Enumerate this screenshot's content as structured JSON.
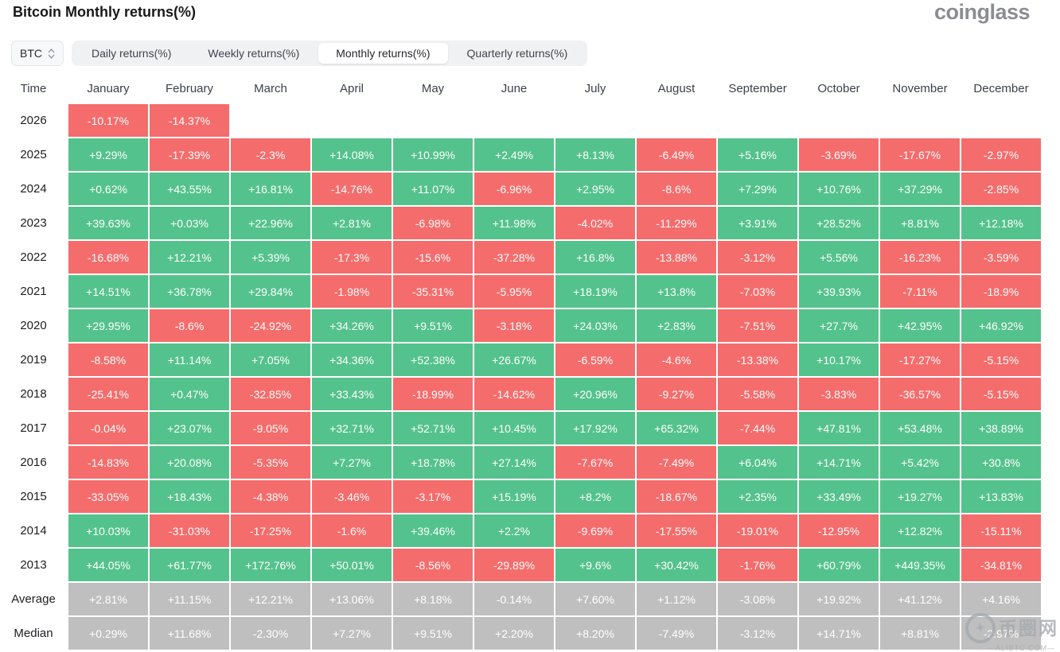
{
  "page": {
    "title": "Bitcoin Monthly returns(%)",
    "logo": "coinglass"
  },
  "controls": {
    "symbol_select": {
      "value": "BTC"
    },
    "tabs": [
      {
        "label": "Daily returns(%)",
        "active": false
      },
      {
        "label": "Weekly returns(%)",
        "active": false
      },
      {
        "label": "Monthly returns(%)",
        "active": true
      },
      {
        "label": "Quarterly returns(%)",
        "active": false
      }
    ]
  },
  "table": {
    "columns": [
      "Time",
      "January",
      "February",
      "March",
      "April",
      "May",
      "June",
      "July",
      "August",
      "September",
      "October",
      "November",
      "December"
    ],
    "rows": [
      {
        "label": "2026",
        "type": "year",
        "cells": [
          "-10.17%",
          "-14.37%",
          "",
          "",
          "",
          "",
          "",
          "",
          "",
          "",
          "",
          ""
        ]
      },
      {
        "label": "2025",
        "type": "year",
        "cells": [
          "+9.29%",
          "-17.39%",
          "-2.3%",
          "+14.08%",
          "+10.99%",
          "+2.49%",
          "+8.13%",
          "-6.49%",
          "+5.16%",
          "-3.69%",
          "-17.67%",
          "-2.97%"
        ]
      },
      {
        "label": "2024",
        "type": "year",
        "cells": [
          "+0.62%",
          "+43.55%",
          "+16.81%",
          "-14.76%",
          "+11.07%",
          "-6.96%",
          "+2.95%",
          "-8.6%",
          "+7.29%",
          "+10.76%",
          "+37.29%",
          "-2.85%"
        ]
      },
      {
        "label": "2023",
        "type": "year",
        "cells": [
          "+39.63%",
          "+0.03%",
          "+22.96%",
          "+2.81%",
          "-6.98%",
          "+11.98%",
          "-4.02%",
          "-11.29%",
          "+3.91%",
          "+28.52%",
          "+8.81%",
          "+12.18%"
        ]
      },
      {
        "label": "2022",
        "type": "year",
        "cells": [
          "-16.68%",
          "+12.21%",
          "+5.39%",
          "-17.3%",
          "-15.6%",
          "-37.28%",
          "+16.8%",
          "-13.88%",
          "-3.12%",
          "+5.56%",
          "-16.23%",
          "-3.59%"
        ]
      },
      {
        "label": "2021",
        "type": "year",
        "cells": [
          "+14.51%",
          "+36.78%",
          "+29.84%",
          "-1.98%",
          "-35.31%",
          "-5.95%",
          "+18.19%",
          "+13.8%",
          "-7.03%",
          "+39.93%",
          "-7.11%",
          "-18.9%"
        ]
      },
      {
        "label": "2020",
        "type": "year",
        "cells": [
          "+29.95%",
          "-8.6%",
          "-24.92%",
          "+34.26%",
          "+9.51%",
          "-3.18%",
          "+24.03%",
          "+2.83%",
          "-7.51%",
          "+27.7%",
          "+42.95%",
          "+46.92%"
        ]
      },
      {
        "label": "2019",
        "type": "year",
        "cells": [
          "-8.58%",
          "+11.14%",
          "+7.05%",
          "+34.36%",
          "+52.38%",
          "+26.67%",
          "-6.59%",
          "-4.6%",
          "-13.38%",
          "+10.17%",
          "-17.27%",
          "-5.15%"
        ]
      },
      {
        "label": "2018",
        "type": "year",
        "cells": [
          "-25.41%",
          "+0.47%",
          "-32.85%",
          "+33.43%",
          "-18.99%",
          "-14.62%",
          "+20.96%",
          "-9.27%",
          "-5.58%",
          "-3.83%",
          "-36.57%",
          "-5.15%"
        ]
      },
      {
        "label": "2017",
        "type": "year",
        "cells": [
          "-0.04%",
          "+23.07%",
          "-9.05%",
          "+32.71%",
          "+52.71%",
          "+10.45%",
          "+17.92%",
          "+65.32%",
          "-7.44%",
          "+47.81%",
          "+53.48%",
          "+38.89%"
        ]
      },
      {
        "label": "2016",
        "type": "year",
        "cells": [
          "-14.83%",
          "+20.08%",
          "-5.35%",
          "+7.27%",
          "+18.78%",
          "+27.14%",
          "-7.67%",
          "-7.49%",
          "+6.04%",
          "+14.71%",
          "+5.42%",
          "+30.8%"
        ]
      },
      {
        "label": "2015",
        "type": "year",
        "cells": [
          "-33.05%",
          "+18.43%",
          "-4.38%",
          "-3.46%",
          "-3.17%",
          "+15.19%",
          "+8.2%",
          "-18.67%",
          "+2.35%",
          "+33.49%",
          "+19.27%",
          "+13.83%"
        ]
      },
      {
        "label": "2014",
        "type": "year",
        "cells": [
          "+10.03%",
          "-31.03%",
          "-17.25%",
          "-1.6%",
          "+39.46%",
          "+2.2%",
          "-9.69%",
          "-17.55%",
          "-19.01%",
          "-12.95%",
          "+12.82%",
          "-15.11%"
        ]
      },
      {
        "label": "2013",
        "type": "year",
        "cells": [
          "+44.05%",
          "+61.77%",
          "+172.76%",
          "+50.01%",
          "-8.56%",
          "-29.89%",
          "+9.6%",
          "+30.42%",
          "-1.76%",
          "+60.79%",
          "+449.35%",
          "-34.81%"
        ]
      },
      {
        "label": "Average",
        "type": "stat",
        "cells": [
          "+2.81%",
          "+11.15%",
          "+12.21%",
          "+13.06%",
          "+8.18%",
          "-0.14%",
          "+7.60%",
          "+1.12%",
          "-3.08%",
          "+19.92%",
          "+41.12%",
          "+4.16%"
        ]
      },
      {
        "label": "Median",
        "type": "stat",
        "cells": [
          "+0.29%",
          "+11.68%",
          "-2.30%",
          "+7.27%",
          "+9.51%",
          "+2.20%",
          "+8.20%",
          "-7.49%",
          "-3.12%",
          "+14.71%",
          "+8.81%",
          "-2.97%"
        ]
      }
    ]
  },
  "watermark": {
    "logo_glyph": "✦",
    "text": "币圈网",
    "subtext": "—ALIBTC.COM—"
  },
  "colors": {
    "positive": "#54c28c",
    "negative": "#f56c6c",
    "neutral": "#bfbfbf"
  }
}
